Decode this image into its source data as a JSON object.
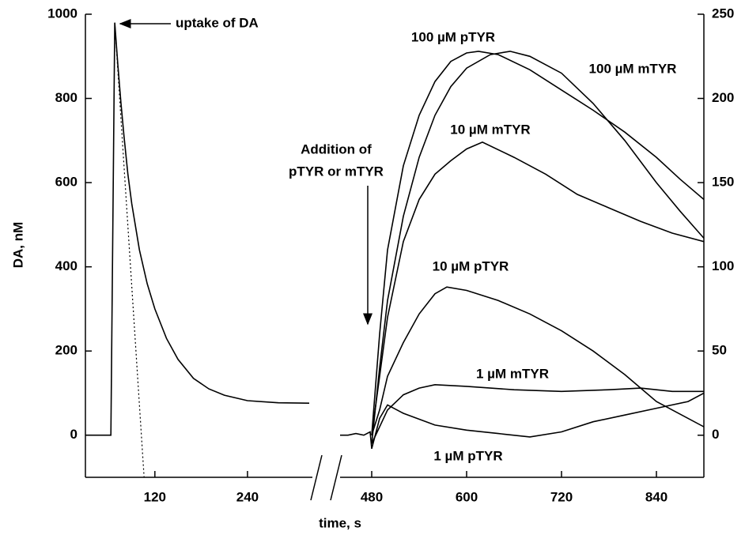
{
  "chart_data": {
    "type": "line",
    "x_label": "time, s",
    "y_label": "DA, nM",
    "xlim": [
      30,
      900
    ],
    "xbreak": [
      320,
      440
    ],
    "xticks": [
      120,
      240,
      480,
      600,
      720,
      840
    ],
    "ylim": [
      -100,
      1000
    ],
    "yticks": [
      0,
      200,
      400,
      600,
      800,
      1000
    ],
    "y2lim": [
      -25,
      250
    ],
    "y2ticks": [
      0,
      50,
      100,
      150,
      200,
      250
    ],
    "annotations": [
      "uptake of DA",
      "Addition of",
      "pTYR or mTYR"
    ],
    "series": [
      {
        "color": "#000000",
        "x": [
          30,
          63,
          68,
          72,
          76,
          80,
          85,
          90,
          100,
          110,
          120,
          135,
          150,
          170,
          190,
          210,
          240,
          280,
          320
        ],
        "values": [
          0,
          0,
          980,
          880,
          790,
          710,
          620,
          550,
          440,
          360,
          300,
          230,
          180,
          135,
          110,
          95,
          82,
          77,
          76
        ]
      },
      {
        "color": "#000000",
        "dash": "dotted",
        "x": [
          68,
          106
        ],
        "values": [
          980,
          -100
        ]
      },
      {
        "color": "#000000",
        "axis": "y2",
        "x": [
          440,
          450,
          460,
          470,
          478,
          480
        ],
        "values": [
          0,
          0,
          1,
          0,
          2,
          -8
        ]
      },
      {
        "name": "100 µM pTYR",
        "color": "#000000",
        "axis": "y2",
        "x": [
          480,
          490,
          500,
          520,
          540,
          560,
          580,
          600,
          615,
          640,
          680,
          720,
          760,
          800,
          840,
          870,
          900
        ],
        "values": [
          0,
          60,
          110,
          160,
          190,
          210,
          222,
          227,
          228,
          226,
          217,
          205,
          193,
          180,
          165,
          152,
          140
        ]
      },
      {
        "name": "100 µM mTYR",
        "color": "#000000",
        "axis": "y2",
        "x": [
          480,
          490,
          500,
          520,
          540,
          560,
          580,
          600,
          630,
          655,
          680,
          720,
          760,
          800,
          840,
          870,
          900
        ],
        "values": [
          -5,
          40,
          80,
          130,
          165,
          190,
          207,
          218,
          226,
          228,
          225,
          215,
          197,
          175,
          150,
          133,
          117
        ]
      },
      {
        "name": "10 µM mTYR",
        "color": "#000000",
        "axis": "y2",
        "x": [
          480,
          500,
          520,
          540,
          560,
          580,
          600,
          620,
          660,
          700,
          740,
          780,
          820,
          860,
          900
        ],
        "values": [
          0,
          70,
          115,
          140,
          155,
          163,
          170,
          174,
          165,
          155,
          143,
          135,
          127,
          120,
          115
        ]
      },
      {
        "name": "10 µM pTYR",
        "color": "#000000",
        "axis": "y2",
        "x": [
          480,
          490,
          500,
          520,
          540,
          560,
          575,
          600,
          640,
          680,
          720,
          760,
          800,
          840,
          900
        ],
        "values": [
          0,
          15,
          35,
          55,
          72,
          84,
          88,
          86,
          80,
          72,
          62,
          50,
          36,
          20,
          5
        ]
      },
      {
        "name": "1 µM mTYR",
        "color": "#000000",
        "axis": "y2",
        "x": [
          480,
          500,
          520,
          540,
          560,
          600,
          660,
          720,
          780,
          820,
          860,
          900
        ],
        "values": [
          -5,
          15,
          24,
          28,
          30,
          29,
          27,
          26,
          27,
          28,
          26,
          26
        ]
      },
      {
        "name": "1 µM pTYR",
        "color": "#000000",
        "axis": "y2",
        "x": [
          480,
          490,
          500,
          520,
          560,
          600,
          640,
          680,
          720,
          760,
          800,
          840,
          880,
          900
        ],
        "values": [
          -8,
          10,
          18,
          13,
          6,
          3,
          1,
          -1,
          2,
          8,
          12,
          16,
          20,
          25
        ]
      }
    ]
  }
}
